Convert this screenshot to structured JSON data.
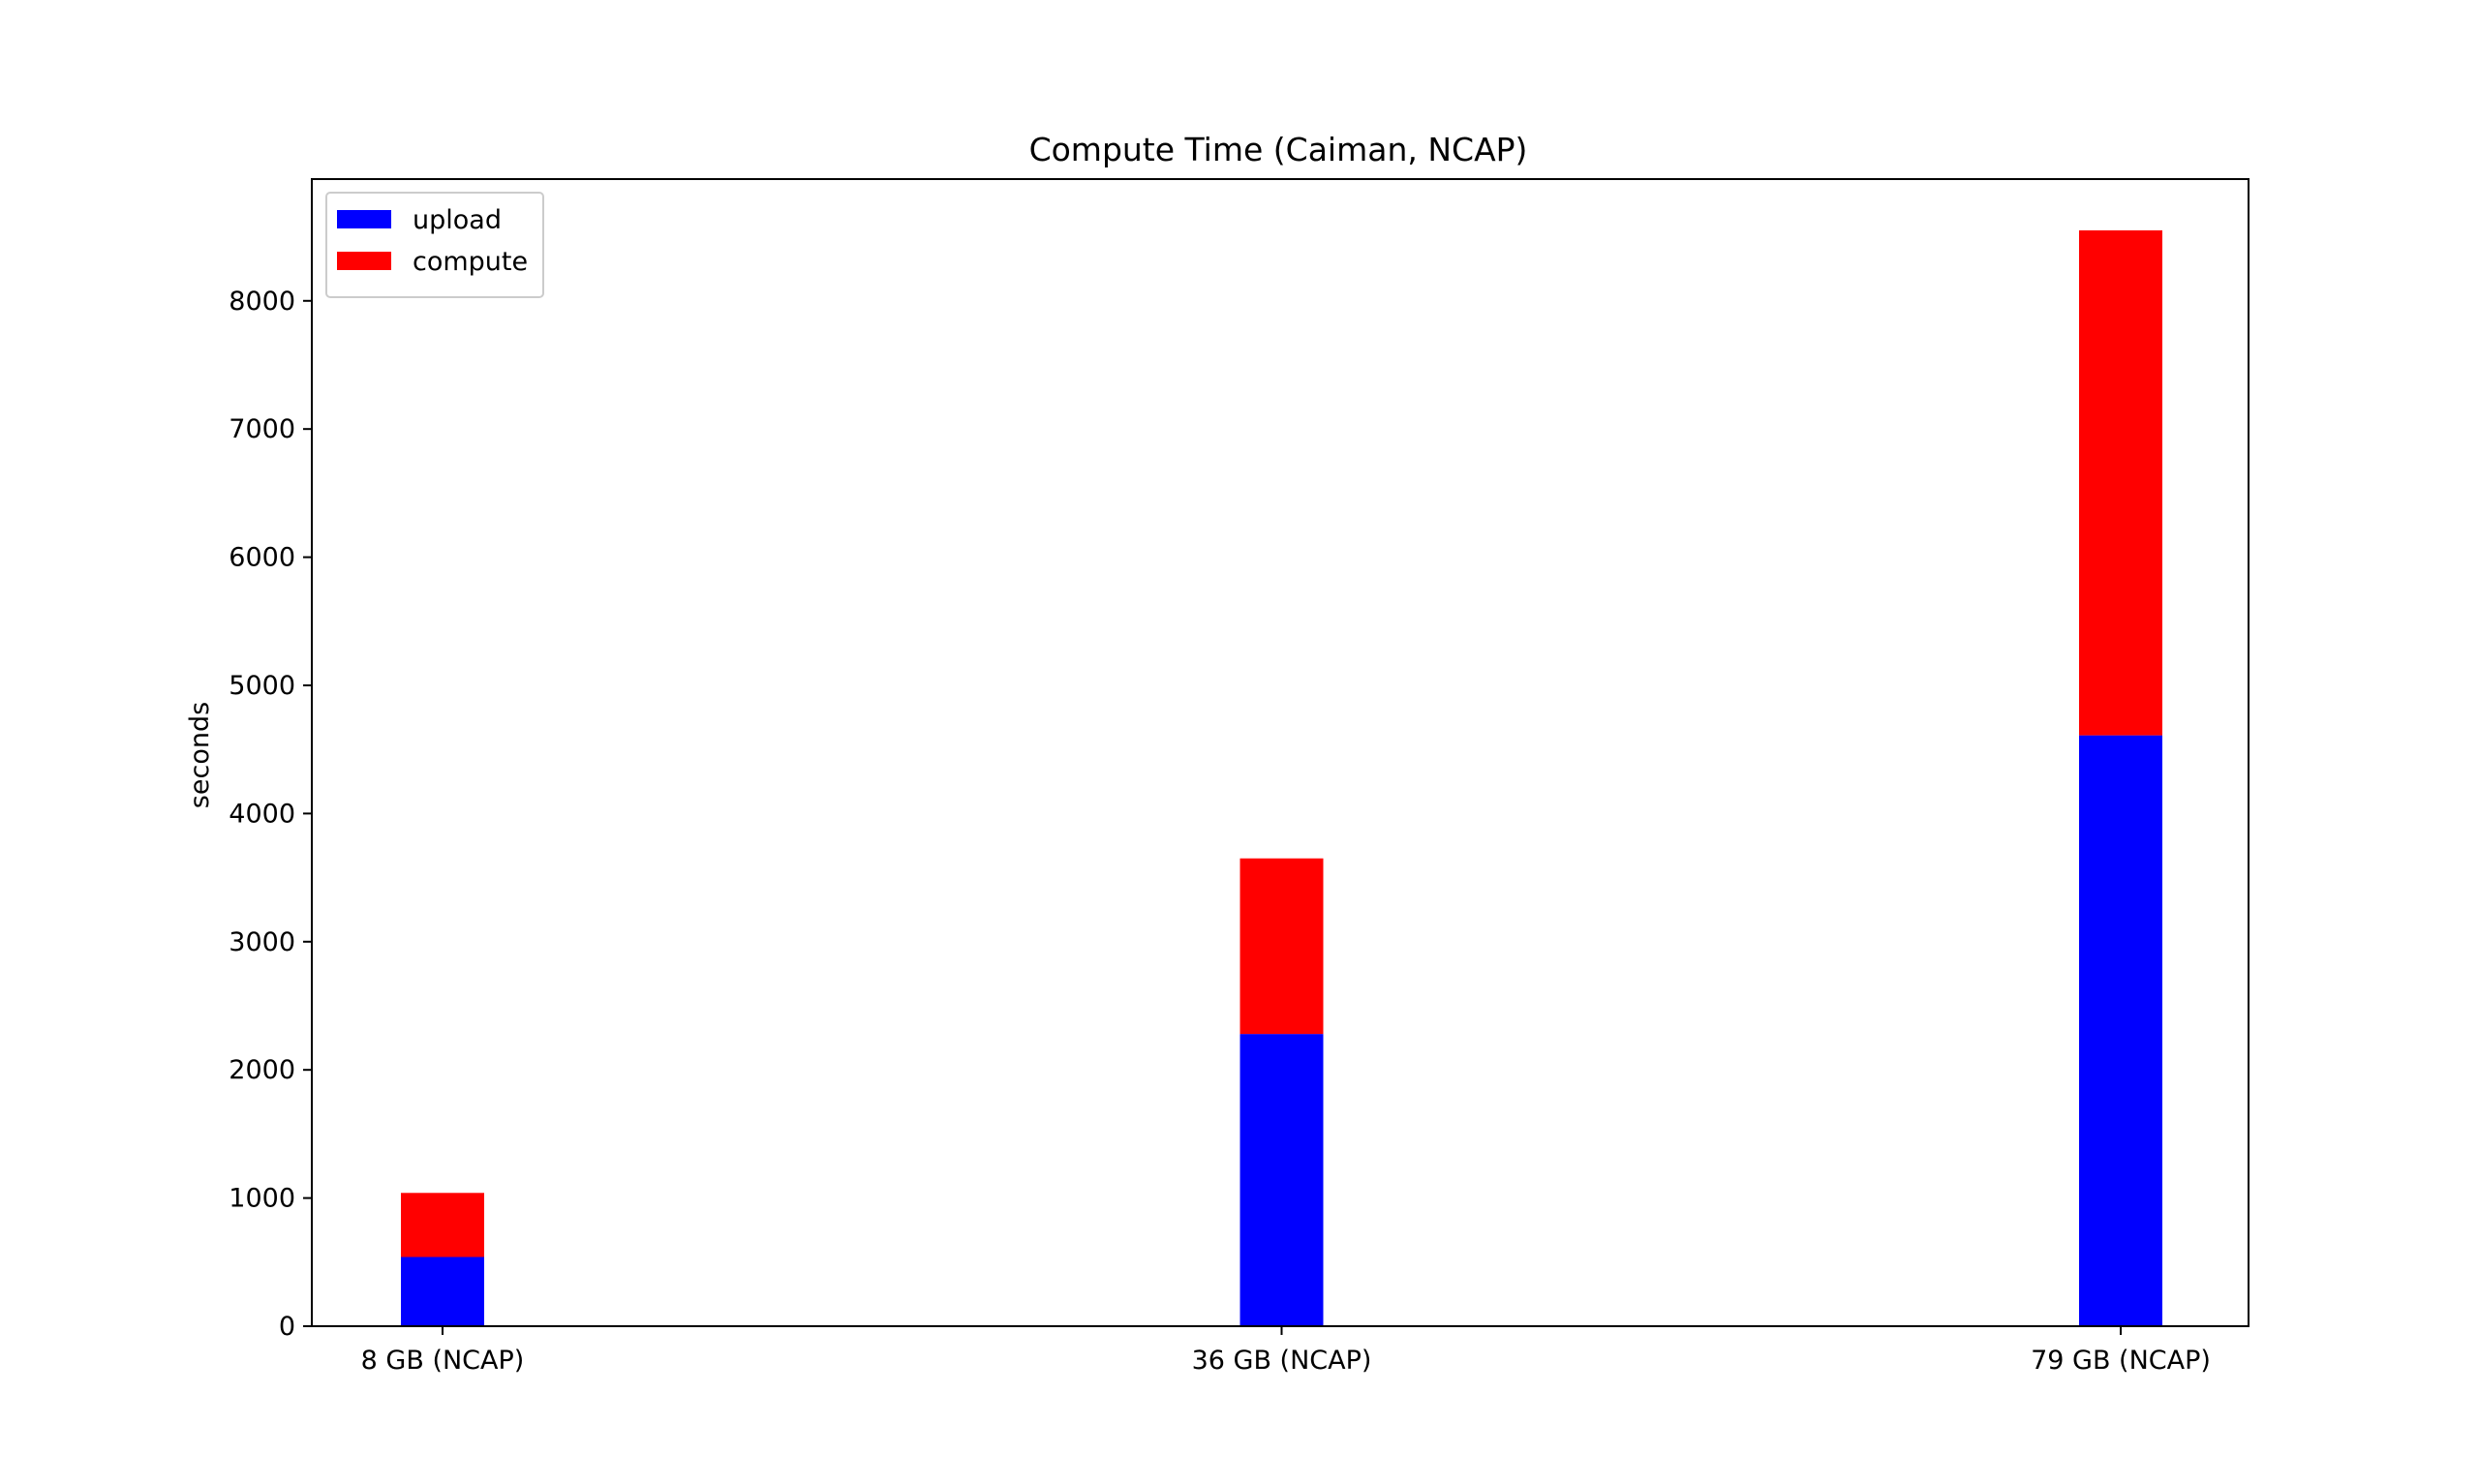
{
  "chart_data": {
    "type": "bar",
    "stacked": true,
    "title": "Compute Time (Caiman, NCAP)",
    "xlabel": "",
    "ylabel": "seconds",
    "categories": [
      "8 GB (NCAP)",
      "36 GB (NCAP)",
      "79 GB (NCAP)"
    ],
    "series": [
      {
        "name": "upload",
        "color": "#0000ff",
        "values": [
          540,
          2280,
          4610
        ]
      },
      {
        "name": "compute",
        "color": "#ff0000",
        "values": [
          500,
          1370,
          3940
        ]
      }
    ],
    "ylim": [
      0,
      8950
    ],
    "yticks": [
      0,
      1000,
      2000,
      3000,
      4000,
      5000,
      6000,
      7000,
      8000
    ],
    "legend": "top-left",
    "grid": false
  }
}
